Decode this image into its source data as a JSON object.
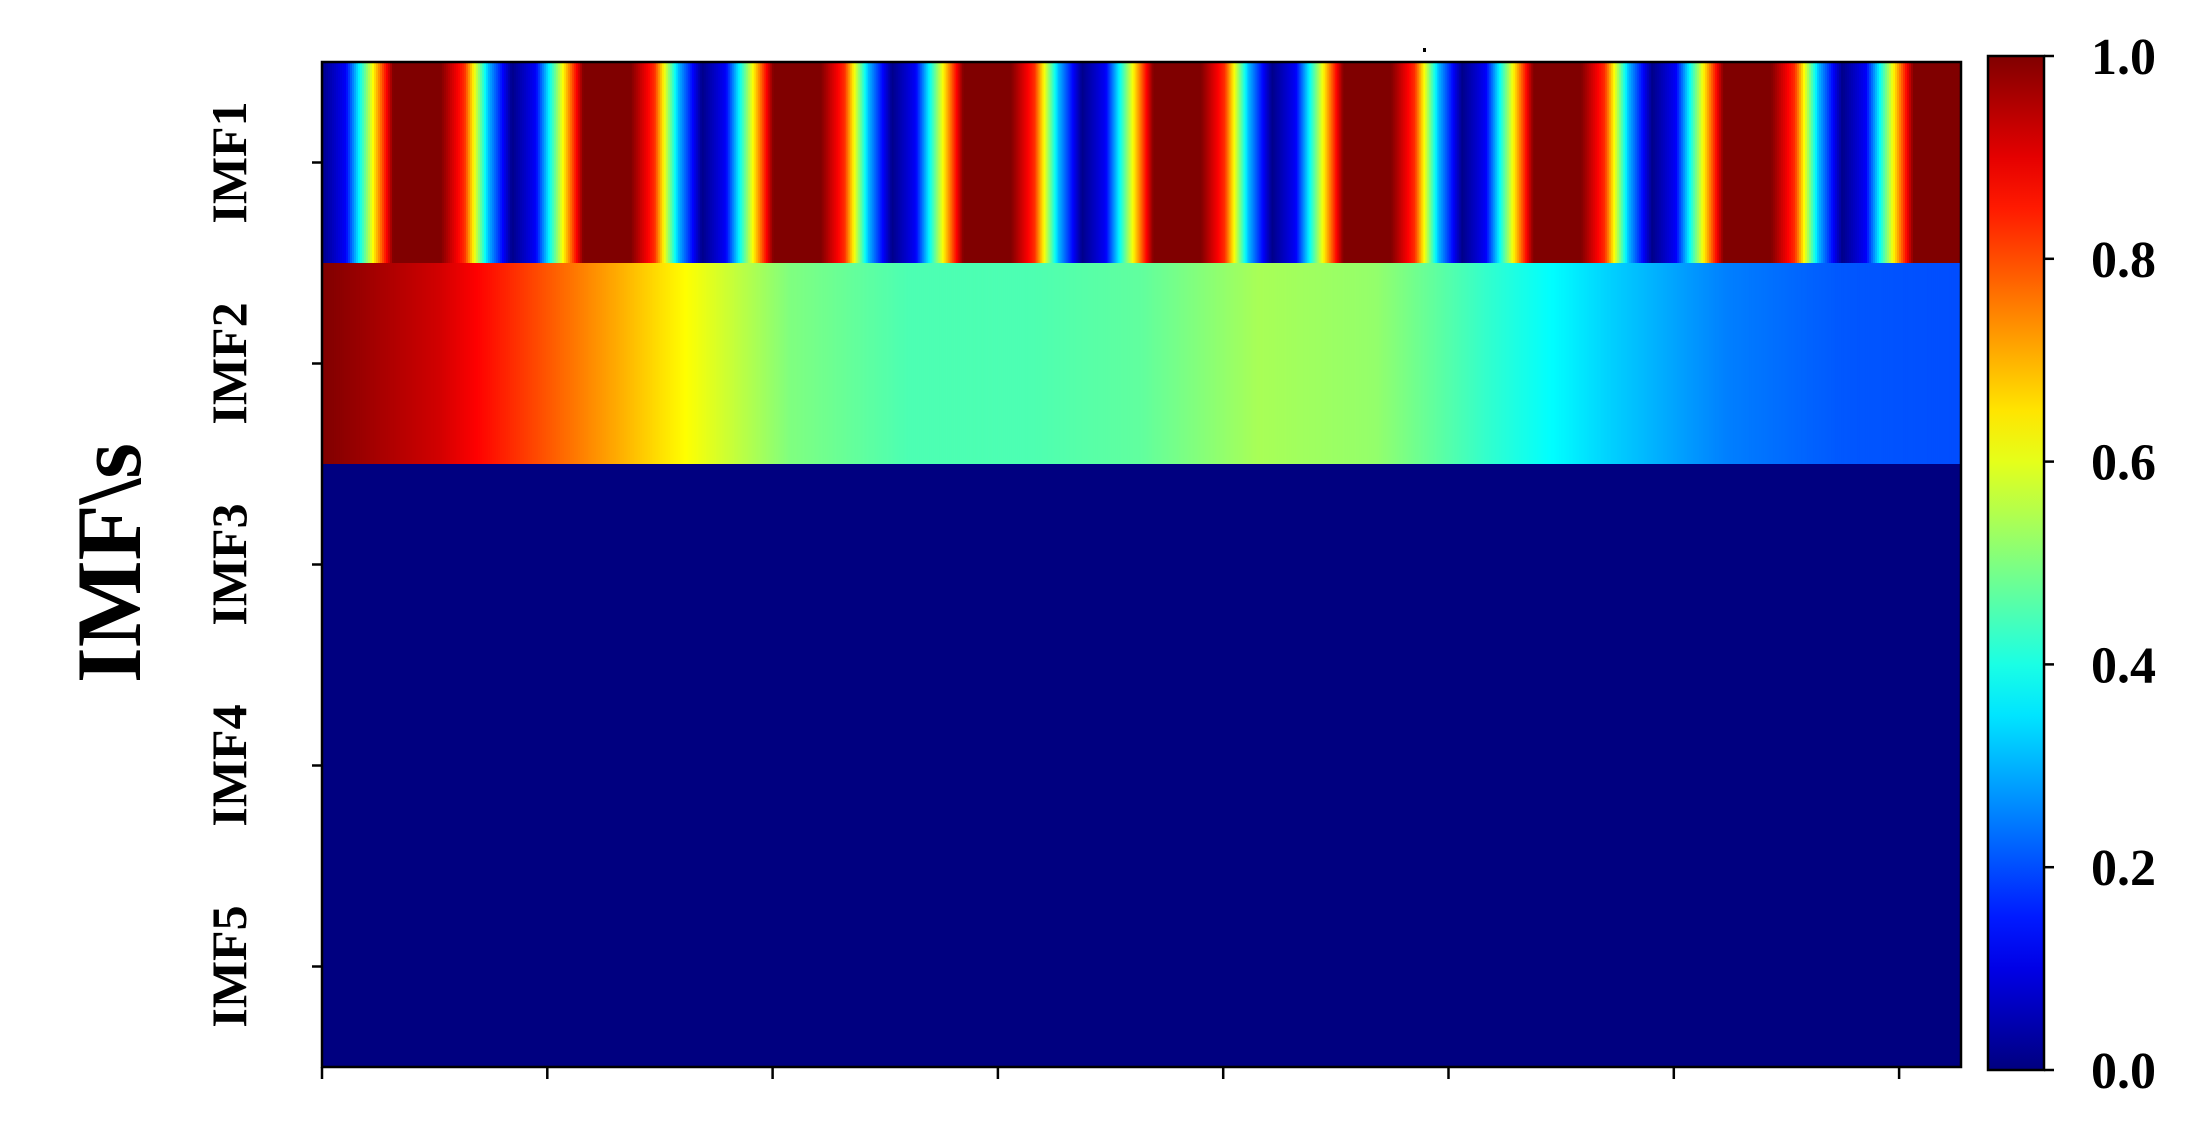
{
  "chart_data": {
    "type": "heatmap",
    "title": "",
    "xlabel": "",
    "ylabel": "IMF\\s",
    "colormap": "jet",
    "row_labels": [
      "IMF1",
      "IMF2",
      "IMF3",
      "IMF4",
      "IMF5"
    ],
    "x_tick_count": 8,
    "x_tick_labels": [],
    "rows": [
      {
        "label": "IMF1",
        "values": [
          0.01,
          0.12,
          0.56,
          1,
          1,
          1,
          0.83,
          0.31,
          0.01,
          0.12,
          0.56,
          1,
          1,
          1,
          0.83,
          0.31,
          0.01,
          0.12,
          0.56,
          1,
          1,
          1,
          0.83,
          0.31,
          0.01,
          0.12,
          0.56,
          1,
          1,
          1,
          0.83,
          0.31,
          0.01,
          0.12,
          0.56,
          1,
          1,
          1,
          0.83,
          0.31,
          0.01,
          0.12,
          0.56,
          1,
          1,
          1,
          0.83,
          0.31,
          0.01,
          0.12,
          0.56,
          1,
          1,
          1,
          0.83,
          0.31,
          0.01,
          0.12,
          0.56,
          1,
          1,
          1,
          0.83,
          0.31,
          0.01,
          0.12,
          0.56,
          1,
          1,
          1
        ]
      },
      {
        "label": "IMF2",
        "values": [
          1.0,
          0.92,
          0.78,
          0.64,
          0.5,
          0.45,
          0.45,
          0.47,
          0.54,
          0.52,
          0.42,
          0.33,
          0.25,
          0.21,
          0.2
        ]
      },
      {
        "label": "IMF3",
        "values": [
          0,
          0
        ]
      },
      {
        "label": "IMF4",
        "values": [
          0,
          0
        ]
      },
      {
        "label": "IMF5",
        "values": [
          0,
          0
        ]
      }
    ],
    "colorbar": {
      "range": [
        0.0,
        1.0
      ],
      "ticks": [
        0.0,
        0.2,
        0.4,
        0.6,
        0.8,
        1.0
      ],
      "tick_labels": [
        "0.0",
        "0.2",
        "0.4",
        "0.6",
        "0.8",
        "1.0"
      ]
    },
    "grid": false
  }
}
